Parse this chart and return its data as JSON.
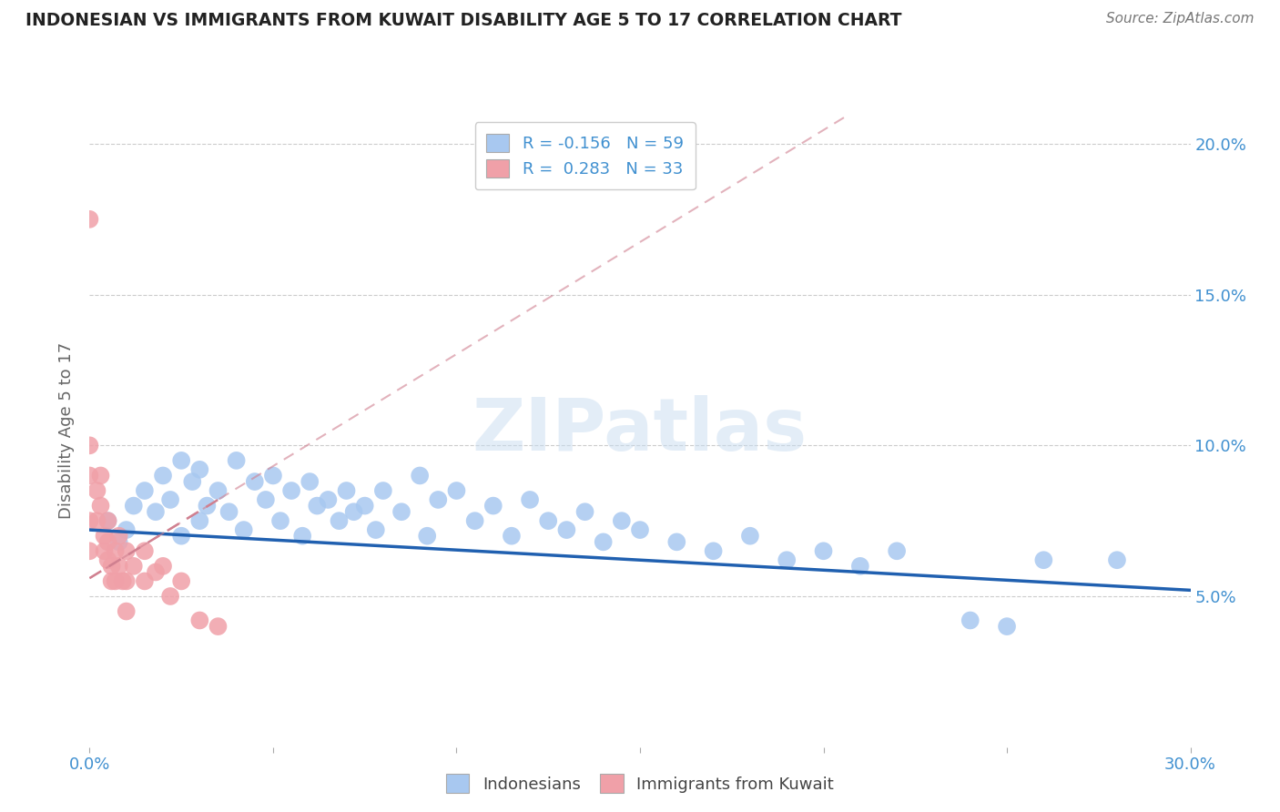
{
  "title": "INDONESIAN VS IMMIGRANTS FROM KUWAIT DISABILITY AGE 5 TO 17 CORRELATION CHART",
  "source": "Source: ZipAtlas.com",
  "ylabel": "Disability Age 5 to 17",
  "xlim": [
    0.0,
    0.3
  ],
  "ylim": [
    0.0,
    0.21
  ],
  "xticks": [
    0.0,
    0.05,
    0.1,
    0.15,
    0.2,
    0.25,
    0.3
  ],
  "xticklabels": [
    "0.0%",
    "",
    "",
    "",
    "",
    "",
    "30.0%"
  ],
  "yticks": [
    0.05,
    0.1,
    0.15,
    0.2
  ],
  "yticklabels": [
    "5.0%",
    "10.0%",
    "15.0%",
    "20.0%"
  ],
  "r_indonesian": -0.156,
  "n_indonesian": 59,
  "r_kuwait": 0.283,
  "n_kuwait": 33,
  "blue_color": "#A8C8F0",
  "pink_color": "#F0A0A8",
  "line_blue": "#2060B0",
  "line_pink": "#D08090",
  "legend_color": "#4090D0",
  "title_color": "#222222",
  "axis_label_color": "#666666",
  "tick_label_color": "#4090D0",
  "grid_color": "#CCCCCC",
  "watermark": "ZIPatlas",
  "indonesian_x": [
    0.005,
    0.008,
    0.01,
    0.012,
    0.015,
    0.018,
    0.02,
    0.022,
    0.025,
    0.025,
    0.028,
    0.03,
    0.03,
    0.032,
    0.035,
    0.038,
    0.04,
    0.042,
    0.045,
    0.048,
    0.05,
    0.052,
    0.055,
    0.058,
    0.06,
    0.062,
    0.065,
    0.068,
    0.07,
    0.072,
    0.075,
    0.078,
    0.08,
    0.085,
    0.09,
    0.092,
    0.095,
    0.1,
    0.105,
    0.11,
    0.115,
    0.12,
    0.125,
    0.13,
    0.135,
    0.14,
    0.145,
    0.15,
    0.16,
    0.17,
    0.18,
    0.19,
    0.2,
    0.21,
    0.22,
    0.24,
    0.25,
    0.26,
    0.28
  ],
  "indonesian_y": [
    0.075,
    0.068,
    0.072,
    0.08,
    0.085,
    0.078,
    0.09,
    0.082,
    0.095,
    0.07,
    0.088,
    0.092,
    0.075,
    0.08,
    0.085,
    0.078,
    0.095,
    0.072,
    0.088,
    0.082,
    0.09,
    0.075,
    0.085,
    0.07,
    0.088,
    0.08,
    0.082,
    0.075,
    0.085,
    0.078,
    0.08,
    0.072,
    0.085,
    0.078,
    0.09,
    0.07,
    0.082,
    0.085,
    0.075,
    0.08,
    0.07,
    0.082,
    0.075,
    0.072,
    0.078,
    0.068,
    0.075,
    0.072,
    0.068,
    0.065,
    0.07,
    0.062,
    0.065,
    0.06,
    0.065,
    0.042,
    0.04,
    0.062,
    0.062
  ],
  "kuwait_x": [
    0.0,
    0.0,
    0.0,
    0.0,
    0.0,
    0.002,
    0.002,
    0.003,
    0.003,
    0.004,
    0.004,
    0.005,
    0.005,
    0.005,
    0.006,
    0.006,
    0.007,
    0.007,
    0.008,
    0.008,
    0.009,
    0.01,
    0.01,
    0.01,
    0.012,
    0.015,
    0.015,
    0.018,
    0.02,
    0.022,
    0.025,
    0.03,
    0.035
  ],
  "kuwait_y": [
    0.175,
    0.1,
    0.09,
    0.075,
    0.065,
    0.085,
    0.075,
    0.09,
    0.08,
    0.07,
    0.065,
    0.075,
    0.068,
    0.062,
    0.06,
    0.055,
    0.065,
    0.055,
    0.07,
    0.06,
    0.055,
    0.065,
    0.055,
    0.045,
    0.06,
    0.065,
    0.055,
    0.058,
    0.06,
    0.05,
    0.055,
    0.042,
    0.04
  ],
  "blue_line_x": [
    0.0,
    0.3
  ],
  "blue_line_y": [
    0.072,
    0.052
  ],
  "pink_line_x": [
    0.0,
    0.035
  ],
  "pink_line_y": [
    0.056,
    0.082
  ]
}
